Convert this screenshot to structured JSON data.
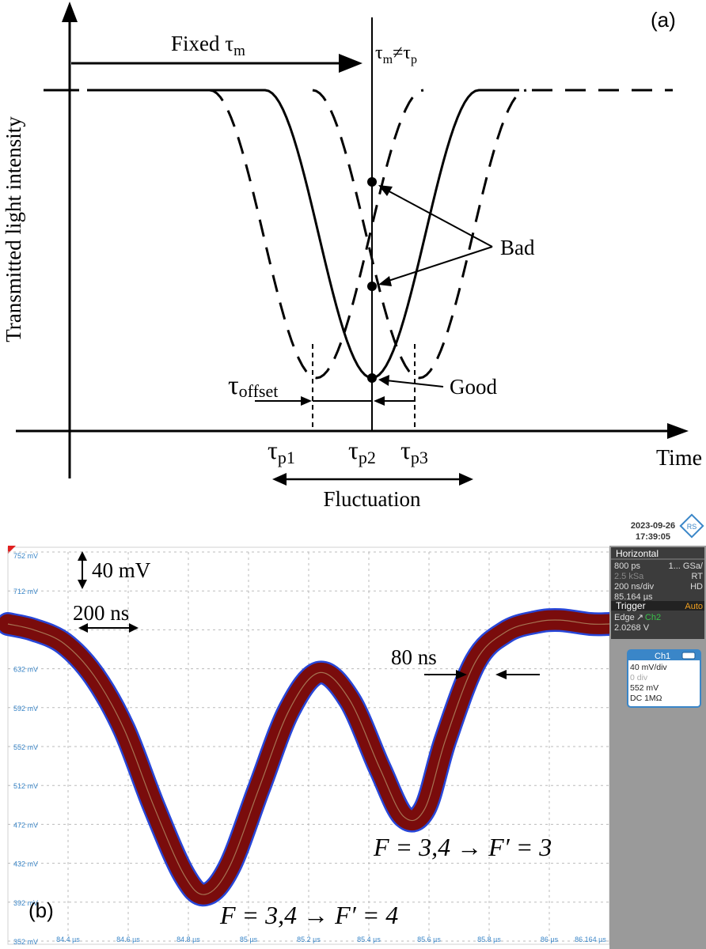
{
  "chart_data": [
    {
      "panel": "(a)",
      "type": "line",
      "ylabel": "Transmitted light intensity",
      "xlabel": "Time",
      "annotations": {
        "fixed": "Fixed τ",
        "fixed_sub": "m",
        "tm": "τ",
        "tm_sub": "m",
        "neq": "≠τ",
        "tp_sub": "p",
        "bad": "Bad",
        "good": "Good",
        "offset": "τ",
        "offset_sub": "offset",
        "fluctuation": "Fluctuation"
      },
      "ticks": [
        {
          "label": "τ",
          "sub": "p1",
          "x": 1
        },
        {
          "label": "τ",
          "sub": "p2",
          "x": 2
        },
        {
          "label": "τ",
          "sub": "p3",
          "x": 3
        }
      ],
      "series": [
        {
          "style": "dashed",
          "center": 1,
          "width": 1,
          "depth": 1
        },
        {
          "style": "solid",
          "center": 2,
          "width": 1,
          "depth": 1
        },
        {
          "style": "dashed",
          "center": 3,
          "width": 1,
          "depth": 1
        }
      ],
      "measure_time": 2,
      "points": [
        {
          "label": "Bad",
          "y": 0.6
        },
        {
          "label": "Bad",
          "y": 0.3
        },
        {
          "label": "Good",
          "y": 0.0
        }
      ]
    },
    {
      "panel": "(b)",
      "type": "line",
      "header": {
        "date": "2023-09-26",
        "time": "17:39:05"
      },
      "y_ticks": [
        "752 mV",
        "712 mV",
        "672 mV",
        "632 mV",
        "592 mV",
        "552 mV",
        "512 mV",
        "472 mV",
        "432 mV",
        "392 mV",
        "352 mV"
      ],
      "x_ticks": [
        "84.4 µs",
        "84.6 µs",
        "84.8 µs",
        "85 µs",
        "85.2 µs",
        "85.4 µs",
        "85.6 µs",
        "85.8 µs",
        "86 µs",
        "86.164 µs"
      ],
      "ylim": [
        352,
        752
      ],
      "xlim": [
        84.164,
        86.164
      ],
      "scale_labels": {
        "voltage": "40 mV",
        "time": "200 ns",
        "jitter": "80 ns"
      },
      "transition_labels": [
        "F = 3,4 → F′ = 4",
        "F = 3,4 → F′ = 3"
      ],
      "trace": {
        "x": [
          84.164,
          84.25,
          84.35,
          84.45,
          84.55,
          84.65,
          84.75,
          84.82,
          84.9,
          85.0,
          85.1,
          85.2,
          85.3,
          85.4,
          85.48,
          85.55,
          85.62,
          85.72,
          85.82,
          85.92,
          86.0,
          86.1,
          86.164
        ],
        "y": [
          678,
          672,
          658,
          625,
          570,
          490,
          420,
          400,
          428,
          510,
          590,
          628,
          600,
          530,
          480,
          488,
          560,
          640,
          670,
          680,
          682,
          678,
          678
        ]
      },
      "side_panel": {
        "horizontal": {
          "title": "Horizontal",
          "rows": [
            [
              "800 ps",
              "1... GSa/"
            ],
            [
              "2.5 kSa",
              "RT"
            ],
            [
              "200 ns/div",
              "HD"
            ],
            [
              "85.164 µs",
              ""
            ]
          ]
        },
        "trigger": {
          "title": "Trigger",
          "mode": "Auto",
          "source_text": "Edge",
          "source_channel": "Ch2",
          "level": "2.0268 V"
        },
        "channel": {
          "title": "Ch1",
          "rows": [
            "40 mV/div",
            "0 div",
            "552 mV",
            "DC 1MΩ"
          ]
        }
      },
      "colors": {
        "trace": "#7a0c0c",
        "trace_edge": "#2746d8",
        "grid": "#bbbbbb",
        "tick_text": "#3a86c8",
        "panel_dark": "#3c3c3c",
        "accent": "#f0a020",
        "ch2": "#39c14a"
      }
    }
  ]
}
